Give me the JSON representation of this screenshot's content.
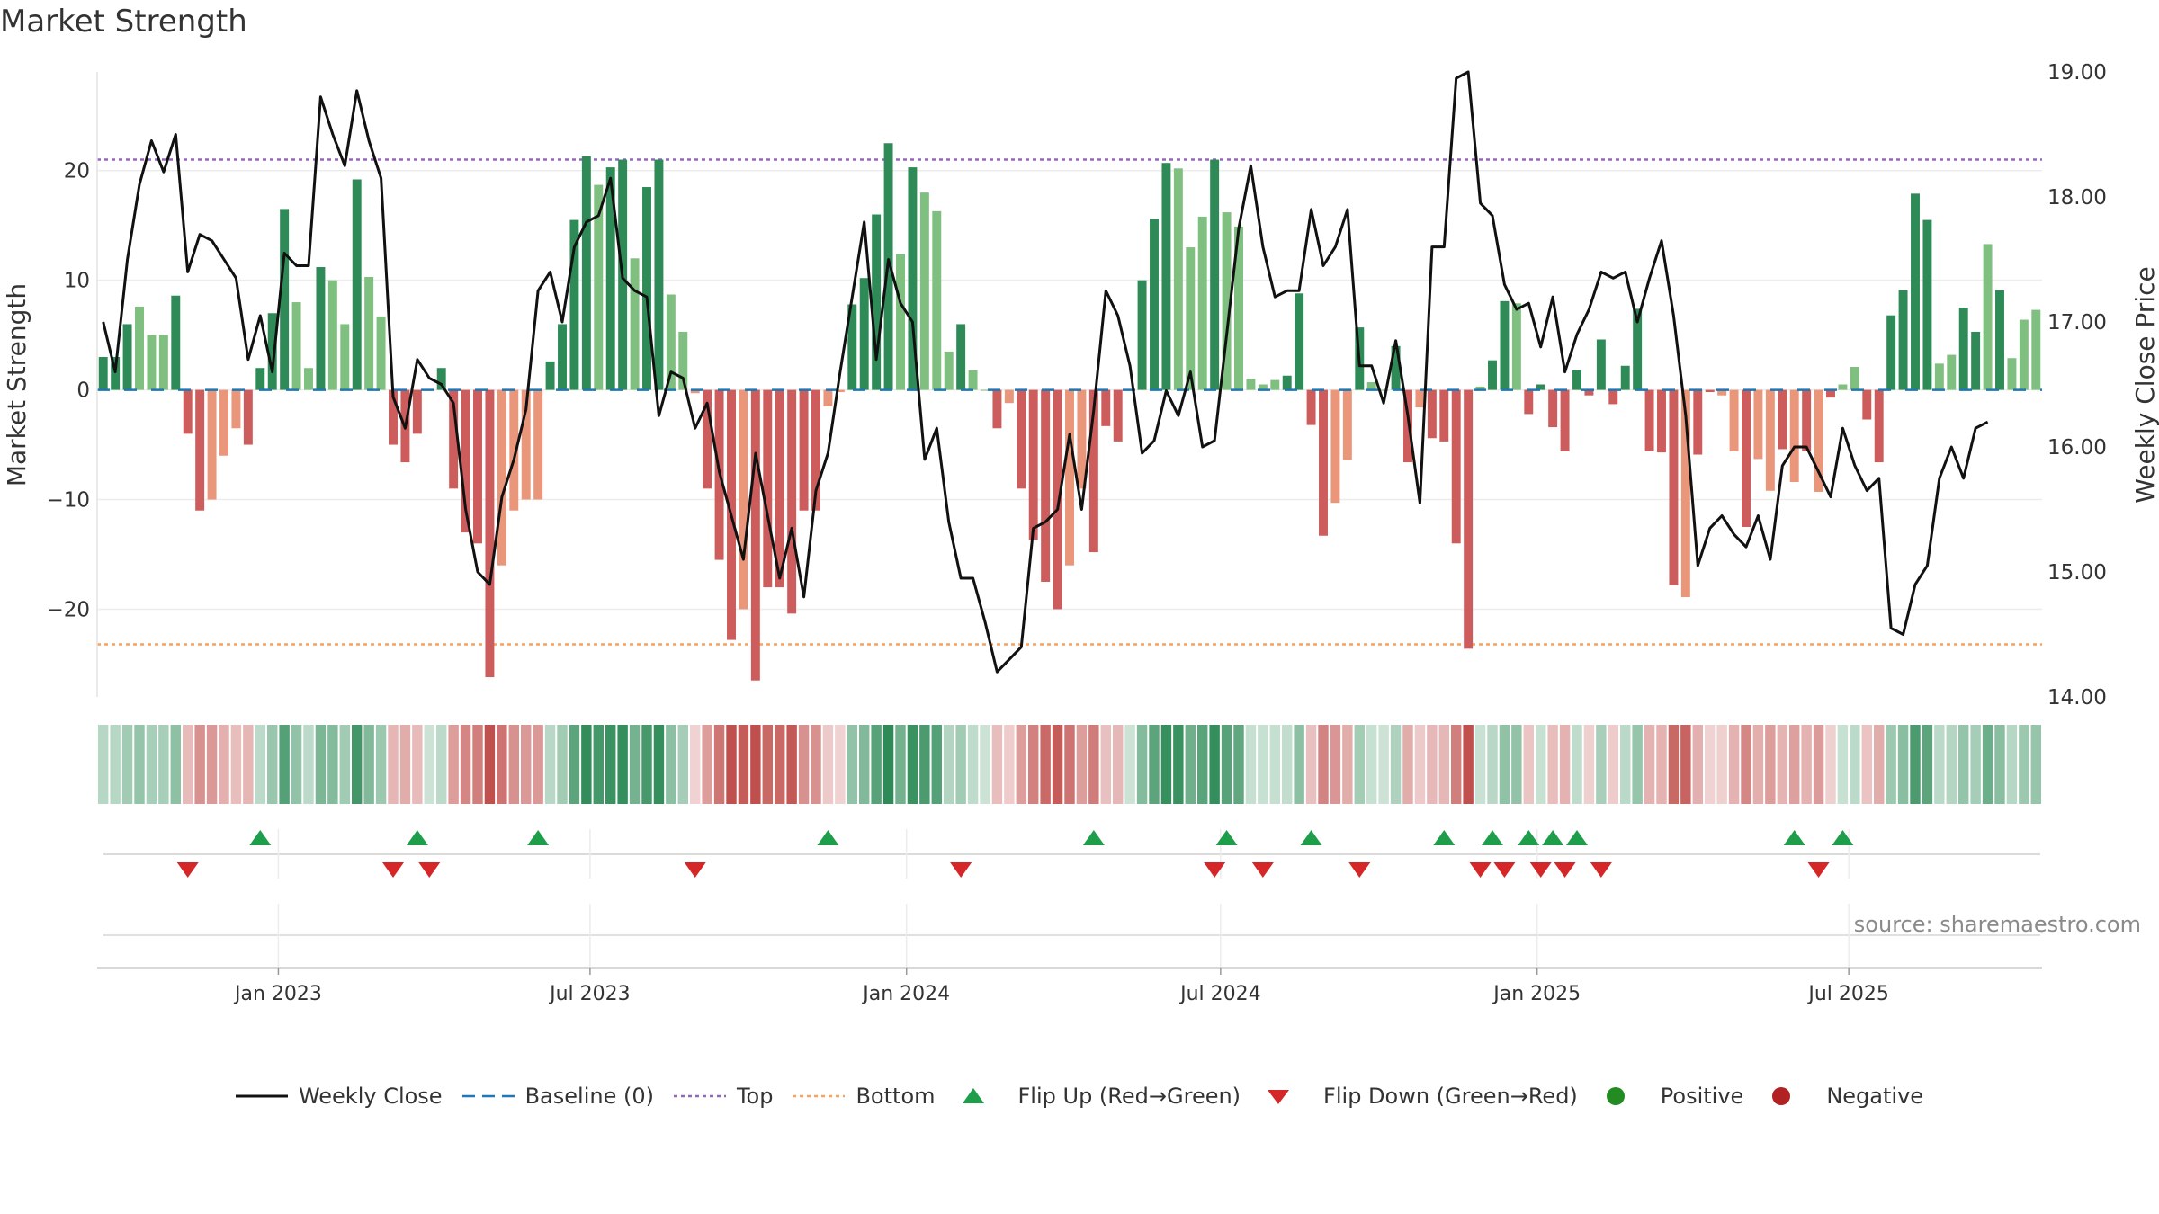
{
  "title": "Market Strength",
  "source": "source: sharemaestro.com",
  "chart_data": {
    "type": "bar+line",
    "title": "Market Strength",
    "ylabel_left": "Market Strength",
    "ylabel_right": "Weekly Close Price",
    "ylim_left": [
      -28,
      29
    ],
    "ylim_right": [
      14.0,
      19.0
    ],
    "yticks_left": [
      20,
      10,
      0,
      -10,
      -20
    ],
    "yticks_left_labels": [
      "20",
      "10",
      "0",
      "−10",
      "−20"
    ],
    "yticks_right": [
      19.0,
      18.0,
      17.0,
      16.0,
      15.0,
      14.0
    ],
    "yticks_right_labels": [
      "19.00",
      "18.00",
      "17.00",
      "16.00",
      "15.00",
      "14.00"
    ],
    "top_level": 21,
    "bottom_level": -23.2,
    "baseline": 0,
    "x_start_index": 0,
    "xtick_indices": [
      14.5,
      40.3,
      66.5,
      92.5,
      118.7,
      144.5
    ],
    "xtick_labels": [
      "Jan 2023",
      "Jul 2023",
      "Jan 2024",
      "Jul 2024",
      "Jan 2025",
      "Jul 2025"
    ],
    "strength": [
      3,
      3,
      6,
      7.6,
      5,
      5,
      8.6,
      -4,
      -11,
      -10,
      -6,
      -3.5,
      -5,
      2,
      7,
      16.5,
      8,
      2,
      11.2,
      10,
      6,
      19.2,
      10.3,
      6.7,
      -5,
      -6.6,
      -4,
      0,
      2,
      -9,
      -13,
      -14,
      -26.2,
      -16,
      -11,
      -10,
      -10,
      2.6,
      6,
      15.5,
      21.3,
      18.7,
      20.3,
      21,
      12,
      18.5,
      21,
      8.7,
      5.3,
      -0.3,
      -9,
      -15.5,
      -22.8,
      -20,
      -26.5,
      -18,
      -18,
      -20.4,
      -11,
      -11,
      -1.5,
      -0.2,
      7.8,
      10.2,
      16,
      22.5,
      12.4,
      20.3,
      18,
      16.3,
      3.5,
      6,
      1.8,
      0,
      -3.5,
      -1.2,
      -9,
      -13.7,
      -17.5,
      -20,
      -16,
      -9,
      -14.8,
      -3.3,
      -4.7,
      0,
      10,
      15.6,
      20.7,
      20.2,
      13,
      15.8,
      21,
      16.2,
      14.9,
      1,
      0.5,
      0.9,
      1.3,
      8.8,
      -3.2,
      -13.3,
      -10.3,
      -6.4,
      5.7,
      0.7,
      0,
      4,
      -6.6,
      -1.6,
      -4.4,
      -4.7,
      -14,
      -23.6,
      0.3,
      2.7,
      8.1,
      7.9,
      -2.2,
      0.5,
      -3.4,
      -5.6,
      1.8,
      -0.5,
      4.6,
      -1.3,
      2.2,
      7.4,
      -5.6,
      -5.7,
      -17.8,
      -18.9,
      -5.9,
      -0.2,
      -0.5,
      -5.6,
      -12.5,
      -6.3,
      -9.2,
      -5.4,
      -8.4,
      -5.6,
      -9.3,
      -0.7,
      0.5,
      2.1,
      -2.7,
      -6.6,
      6.8,
      9.1,
      17.9,
      15.5,
      2.4,
      3.2,
      7.5,
      5.3,
      13.3,
      9.1,
      2.9,
      6.4,
      7.3
    ],
    "shade": [
      2,
      2,
      2,
      1,
      1,
      1,
      2,
      2,
      2,
      1,
      1,
      1,
      2,
      2,
      2,
      2,
      1,
      1,
      2,
      1,
      1,
      2,
      1,
      1,
      2,
      2,
      2,
      1,
      2,
      2,
      2,
      2,
      2,
      1,
      1,
      1,
      1,
      2,
      2,
      2,
      2,
      1,
      2,
      2,
      1,
      2,
      2,
      1,
      1,
      1,
      2,
      2,
      2,
      1,
      2,
      2,
      2,
      2,
      2,
      2,
      1,
      1,
      2,
      2,
      2,
      2,
      1,
      2,
      1,
      1,
      1,
      2,
      1,
      1,
      2,
      1,
      2,
      2,
      2,
      2,
      1,
      1,
      2,
      2,
      2,
      2,
      2,
      2,
      2,
      1,
      1,
      1,
      2,
      1,
      1,
      1,
      1,
      1,
      2,
      2,
      2,
      2,
      1,
      1,
      2,
      1,
      1,
      2,
      2,
      1,
      2,
      2,
      2,
      2,
      1,
      2,
      2,
      1,
      2,
      2,
      2,
      2,
      2,
      2,
      2,
      2,
      2,
      2,
      2,
      2,
      2,
      1,
      2,
      2,
      1,
      1,
      2,
      1,
      1,
      2,
      1,
      2,
      1,
      2,
      1,
      1,
      2,
      2,
      2,
      2,
      2,
      2,
      1,
      1,
      2,
      2,
      1,
      2,
      1,
      1,
      1,
      2
    ],
    "close": [
      17.0,
      16.6,
      17.5,
      18.1,
      18.45,
      18.2,
      18.5,
      17.4,
      17.7,
      17.65,
      17.5,
      17.35,
      16.7,
      17.05,
      16.6,
      17.55,
      17.45,
      17.45,
      18.8,
      18.5,
      18.25,
      18.85,
      18.45,
      18.15,
      16.4,
      16.15,
      16.7,
      16.55,
      16.5,
      16.35,
      15.5,
      15.0,
      14.9,
      15.6,
      15.9,
      16.3,
      17.25,
      17.4,
      17.0,
      17.6,
      17.8,
      17.85,
      18.15,
      17.35,
      17.25,
      17.2,
      16.25,
      16.6,
      16.55,
      16.15,
      16.35,
      15.8,
      15.45,
      15.1,
      15.95,
      15.45,
      14.95,
      15.35,
      14.8,
      15.65,
      15.95,
      16.6,
      17.2,
      17.8,
      16.7,
      17.5,
      17.15,
      17.0,
      15.9,
      16.15,
      15.4,
      14.95,
      14.95,
      14.6,
      14.2,
      14.3,
      14.4,
      15.35,
      15.4,
      15.5,
      16.1,
      15.5,
      16.3,
      17.25,
      17.05,
      16.65,
      15.95,
      16.05,
      16.45,
      16.25,
      16.6,
      16.0,
      16.05,
      16.9,
      17.75,
      18.25,
      17.6,
      17.2,
      17.25,
      17.25,
      17.9,
      17.45,
      17.6,
      17.9,
      16.65,
      16.65,
      16.35,
      16.85,
      16.25,
      15.55,
      17.6,
      17.6,
      18.95,
      19.0,
      17.95,
      17.85,
      17.3,
      17.1,
      17.15,
      16.8,
      17.2,
      16.6,
      16.9,
      17.1,
      17.4,
      17.35,
      17.4,
      17.0,
      17.35,
      17.65,
      17.05,
      16.25,
      15.05,
      15.35,
      15.45,
      15.3,
      15.2,
      15.45,
      15.1,
      15.85,
      16.0,
      16.0,
      15.8,
      15.6,
      16.15,
      15.85,
      15.65,
      15.75,
      14.55,
      14.5,
      14.9,
      15.05,
      15.75,
      16.0,
      15.75,
      16.15,
      16.2
    ],
    "flip_up": [
      13,
      26,
      36,
      60,
      82,
      93,
      100,
      111,
      115,
      118,
      120,
      122,
      140,
      144
    ],
    "flip_down": [
      7,
      24,
      27,
      49,
      71,
      92,
      96,
      104,
      114,
      116,
      119,
      121,
      124,
      142
    ],
    "legend": [
      "Weekly Close",
      "Baseline (0)",
      "Top",
      "Bottom",
      "Flip Up (Red→Green)",
      "Flip Down (Green→Red)",
      "Positive",
      "Negative"
    ],
    "colors": {
      "pos_dark": "#2e8b57",
      "pos_light": "#7fbf7f",
      "neg_dark": "#cd5c5c",
      "neg_light": "#e9967a",
      "line": "#111111",
      "baseline": "#1f77b4",
      "top": "#9467bd",
      "bottom": "#f4a460",
      "flip_up": "#1e9e4a",
      "flip_down": "#d62728",
      "positive": "#228b22",
      "negative": "#b22222"
    }
  }
}
